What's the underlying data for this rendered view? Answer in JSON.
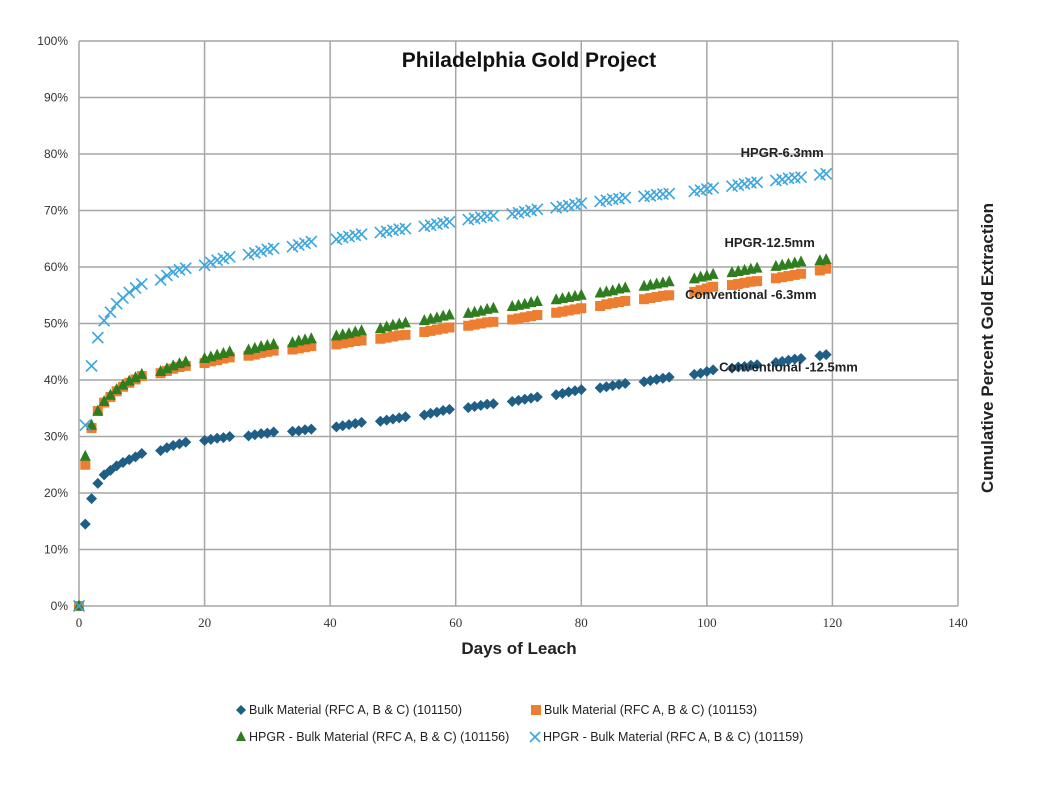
{
  "chart_data": {
    "type": "scatter",
    "title": "Philadelphia Gold Project",
    "xlabel": "Days of Leach",
    "ylabel": "Cumulative Percent Gold Extraction",
    "xlim": [
      0,
      140
    ],
    "ylim": [
      0,
      100
    ],
    "x_ticks": [
      "0",
      "20",
      "40",
      "60",
      "80",
      "100",
      "120",
      "140"
    ],
    "x_tick_values": [
      0,
      20,
      40,
      60,
      80,
      100,
      120,
      140
    ],
    "y_ticks": [
      "0%",
      "10%",
      "20%",
      "30%",
      "40%",
      "50%",
      "60%",
      "70%",
      "80%",
      "90%",
      "100%"
    ],
    "y_tick_values": [
      0,
      10,
      20,
      30,
      40,
      50,
      60,
      70,
      80,
      90,
      100
    ],
    "grid": true,
    "legend_position": "bottom",
    "x": [
      0,
      1,
      2,
      3,
      4,
      5,
      6,
      7,
      8,
      9,
      10,
      13,
      14,
      15,
      16,
      17,
      20,
      21,
      22,
      23,
      24,
      27,
      28,
      29,
      30,
      31,
      34,
      35,
      36,
      37,
      41,
      42,
      43,
      44,
      45,
      48,
      49,
      50,
      51,
      52,
      55,
      56,
      57,
      58,
      59,
      62,
      63,
      64,
      65,
      66,
      69,
      70,
      71,
      72,
      73,
      76,
      77,
      78,
      79,
      80,
      83,
      84,
      85,
      86,
      87,
      90,
      91,
      92,
      93,
      94,
      98,
      99,
      100,
      101,
      104,
      105,
      106,
      107,
      108,
      111,
      112,
      113,
      114,
      115,
      118,
      119
    ],
    "series": [
      {
        "name": "Bulk Material (RFC A, B & C) (101150)",
        "marker": "diamond",
        "color": "#1f5f85",
        "values": [
          0,
          14.5,
          19,
          21.7,
          23.2,
          24,
          24.8,
          25.4,
          25.9,
          26.4,
          27,
          27.5,
          28,
          28.4,
          28.7,
          29,
          29.3,
          29.5,
          29.7,
          29.8,
          30,
          30.1,
          30.3,
          30.5,
          30.6,
          30.8,
          30.9,
          31,
          31.2,
          31.3,
          31.7,
          31.9,
          32.1,
          32.3,
          32.5,
          32.7,
          32.9,
          33.1,
          33.3,
          33.5,
          33.8,
          34.1,
          34.3,
          34.6,
          34.8,
          35.1,
          35.3,
          35.5,
          35.7,
          35.8,
          36.2,
          36.4,
          36.6,
          36.8,
          37,
          37.4,
          37.6,
          37.9,
          38.1,
          38.3,
          38.6,
          38.8,
          39,
          39.2,
          39.4,
          39.7,
          39.9,
          40.1,
          40.3,
          40.5,
          41,
          41.2,
          41.5,
          41.8,
          42.1,
          42.3,
          42.4,
          42.6,
          42.7,
          43.1,
          43.3,
          43.5,
          43.7,
          43.8,
          44.3,
          44.5
        ]
      },
      {
        "name": "Bulk Material (RFC A, B & C) (101153)",
        "marker": "square",
        "color": "#ed7d31",
        "values": [
          0,
          25,
          31.5,
          34.5,
          36,
          37,
          38,
          38.8,
          39.5,
          40.1,
          40.7,
          41.2,
          41.6,
          42,
          42.3,
          42.5,
          43,
          43.3,
          43.5,
          43.8,
          44,
          44.3,
          44.5,
          44.8,
          45,
          45.2,
          45.4,
          45.6,
          45.8,
          46,
          46.3,
          46.5,
          46.7,
          46.9,
          47,
          47.3,
          47.5,
          47.7,
          47.9,
          48,
          48.5,
          48.7,
          48.9,
          49.1,
          49.3,
          49.6,
          49.8,
          50,
          50.2,
          50.3,
          50.7,
          50.9,
          51.1,
          51.3,
          51.5,
          51.9,
          52.1,
          52.3,
          52.5,
          52.7,
          53.1,
          53.4,
          53.6,
          53.8,
          54,
          54.3,
          54.5,
          54.7,
          54.9,
          55,
          55.6,
          55.9,
          56.2,
          56.5,
          56.8,
          57,
          57.2,
          57.4,
          57.5,
          58,
          58.2,
          58.4,
          58.6,
          58.8,
          59.4,
          59.7
        ]
      },
      {
        "name": "HPGR - Bulk Material (RFC A, B & C) (101156)",
        "marker": "triangle",
        "color": "#2e7d1f",
        "values": [
          0,
          26.5,
          32,
          34.5,
          36.2,
          37.3,
          38.3,
          39.1,
          39.8,
          40.4,
          41,
          41.5,
          42,
          42.5,
          42.9,
          43.2,
          43.8,
          44.1,
          44.4,
          44.7,
          45,
          45.3,
          45.6,
          45.9,
          46.1,
          46.3,
          46.6,
          46.9,
          47.1,
          47.3,
          47.8,
          48,
          48.2,
          48.5,
          48.7,
          49.1,
          49.4,
          49.7,
          49.9,
          50.1,
          50.5,
          50.8,
          51,
          51.3,
          51.5,
          51.8,
          52,
          52.2,
          52.5,
          52.7,
          53,
          53.2,
          53.4,
          53.7,
          53.9,
          54.2,
          54.4,
          54.6,
          54.8,
          55,
          55.4,
          55.6,
          55.8,
          56.1,
          56.3,
          56.6,
          56.8,
          57,
          57.2,
          57.4,
          57.9,
          58.2,
          58.4,
          58.7,
          59,
          59.2,
          59.4,
          59.6,
          59.8,
          60.1,
          60.3,
          60.5,
          60.7,
          60.9,
          61.1,
          61.3
        ]
      },
      {
        "name": "HPGR - Bulk Material (RFC A, B & C) (101159)",
        "marker": "x",
        "color": "#3aa6dd",
        "values": [
          0,
          32,
          42.5,
          47.5,
          50.5,
          52,
          53.5,
          54.5,
          55.5,
          56.3,
          57,
          57.7,
          58.5,
          59.1,
          59.5,
          59.8,
          60.3,
          60.8,
          61.2,
          61.5,
          61.8,
          62.2,
          62.5,
          62.8,
          63.1,
          63.3,
          63.6,
          63.9,
          64.2,
          64.5,
          64.9,
          65.2,
          65.4,
          65.6,
          65.8,
          66.1,
          66.3,
          66.5,
          66.7,
          66.8,
          67.2,
          67.4,
          67.6,
          67.8,
          68,
          68.4,
          68.6,
          68.8,
          69,
          69.1,
          69.4,
          69.6,
          69.8,
          70,
          70.2,
          70.5,
          70.7,
          70.9,
          71.1,
          71.3,
          71.6,
          71.8,
          72,
          72.1,
          72.3,
          72.5,
          72.6,
          72.8,
          72.9,
          73,
          73.4,
          73.6,
          73.8,
          74,
          74.3,
          74.5,
          74.7,
          74.9,
          75,
          75.3,
          75.5,
          75.7,
          75.8,
          75.9,
          76.3,
          76.5
        ]
      }
    ],
    "annotations": [
      {
        "text": "HPGR-6.3mm",
        "x": 112,
        "y": 79.5
      },
      {
        "text": "HPGR-12.5mm",
        "x": 110,
        "y": 63.5
      },
      {
        "text": "Conventional -6.3mm",
        "x": 107,
        "y": 54.3
      },
      {
        "text": "Conventional -12.5mm",
        "x": 113,
        "y": 41.5
      }
    ]
  }
}
